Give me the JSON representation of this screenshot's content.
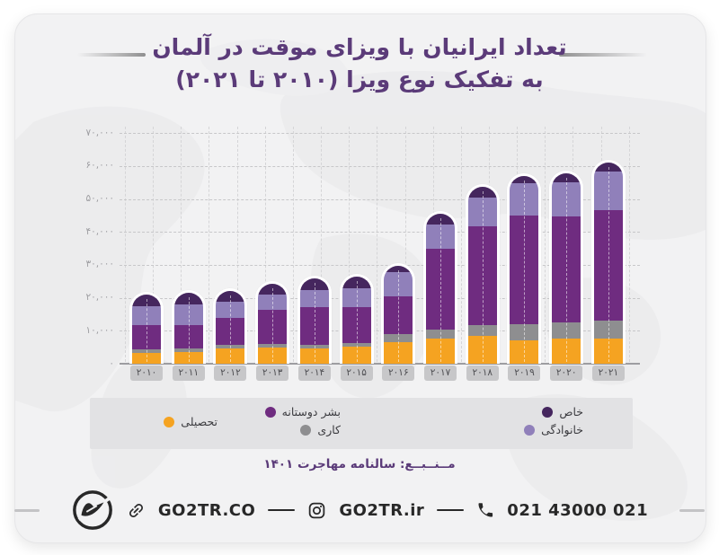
{
  "title": {
    "line1": "تعداد ایرانیان با ویزای موقت در آلمان",
    "line2": "به تفکیک نوع ویزا (۲۰۱۰ تا ۲۰۲۱)"
  },
  "chart_data": {
    "type": "bar",
    "stacked": true,
    "title": "تعداد ایرانیان با ویزای موقت در آلمان به تفکیک نوع ویزا (۲۰۱۰ تا ۲۰۲۱)",
    "categories": [
      2010,
      2011,
      2012,
      2013,
      2014,
      2015,
      2016,
      2017,
      2018,
      2019,
      2020,
      2021
    ],
    "categories_fa": [
      "۲۰۱۰",
      "۲۰۱۱",
      "۲۰۱۲",
      "۲۰۱۳",
      "۲۰۱۴",
      "۲۰۱۵",
      "۲۰۱۶",
      "۲۰۱۷",
      "۲۰۱۸",
      "۲۰۱۹",
      "۲۰۲۰",
      "۲۰۲۱"
    ],
    "series": [
      {
        "name": "تحصیلی",
        "key": "study",
        "color": "#F5A321",
        "values": [
          3500,
          3800,
          4800,
          5200,
          4700,
          5200,
          6800,
          7700,
          8600,
          7300,
          7700,
          7700
        ]
      },
      {
        "name": "کاری",
        "key": "work",
        "color": "#8E8E90",
        "values": [
          900,
          900,
          1100,
          1000,
          1200,
          1200,
          2300,
          2700,
          3200,
          5000,
          5000,
          5500
        ]
      },
      {
        "name": "بشر دوستانه",
        "key": "humanitarian",
        "color": "#6F2C80",
        "values": [
          7700,
          7500,
          8600,
          10800,
          11800,
          11200,
          11800,
          25000,
          30400,
          33200,
          32700,
          34100
        ]
      },
      {
        "name": "خانوادگی",
        "key": "family",
        "color": "#9080BA",
        "values": [
          6100,
          6400,
          5000,
          4800,
          5400,
          6100,
          7700,
          7700,
          9100,
          10000,
          10400,
          11800
        ]
      },
      {
        "name": "خاص",
        "key": "special",
        "color": "#45265E",
        "values": [
          3600,
          3700,
          3400,
          3400,
          3500,
          3600,
          1800,
          3200,
          3200,
          2300,
          2700,
          2700
        ]
      }
    ],
    "totals": [
      21800,
      22300,
      22900,
      25200,
      26600,
      27300,
      30400,
      46300,
      54500,
      57800,
      58500,
      61800
    ],
    "values_estimated_from_pixels": true,
    "ylim": [
      0,
      70000
    ],
    "ytick_step": 10000,
    "yticks_fa": [
      "۰",
      "۱۰,۰۰۰",
      "۲۰,۰۰۰",
      "۳۰,۰۰۰",
      "۴۰,۰۰۰",
      "۵۰,۰۰۰",
      "۶۰,۰۰۰",
      "۷۰,۰۰۰"
    ],
    "grid": "dashed",
    "legend_position": "bottom"
  },
  "legend": {
    "columns": [
      {
        "items": [
          {
            "label": "خاص",
            "key": "special",
            "color": "#45265E"
          },
          {
            "label": "خانوادگی",
            "key": "family",
            "color": "#9080BA"
          }
        ]
      },
      {
        "items": [
          {
            "label": "بشر دوستانه",
            "key": "humanitarian",
            "color": "#6F2C80"
          },
          {
            "label": "کاری",
            "key": "work",
            "color": "#8E8E90"
          }
        ]
      },
      {
        "items": [
          {
            "label": "تحصیلی",
            "key": "study",
            "color": "#F5A321"
          }
        ]
      }
    ]
  },
  "source": {
    "text": "مــنــبــع: سالنامه مهاجرت ۱۴۰۱"
  },
  "footer": {
    "website": "GO2TR.CO",
    "instagram": "GO2TR.ir",
    "phone": "021 43000 021"
  },
  "colors": {
    "title": "#5b3b79",
    "card_bg": "#f2f2f3",
    "legend_band": "#e2e2e4",
    "axis": "#9d9da1",
    "x_pill": "#c7c7c9",
    "footer_ink": "#282828",
    "study": "#F5A321",
    "work": "#8E8E90",
    "humanitarian": "#6F2C80",
    "family": "#9080BA",
    "special": "#45265E"
  }
}
